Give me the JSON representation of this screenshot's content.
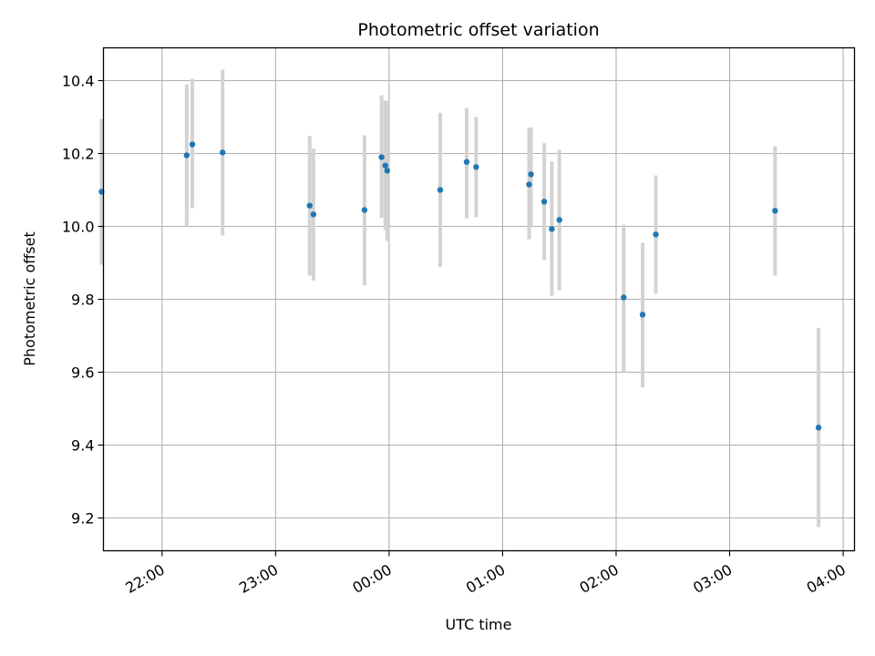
{
  "chart_data": {
    "type": "scatter",
    "title": "Photometric offset variation",
    "xlabel": "UTC time",
    "ylabel": "Photometric offset",
    "x_axis": {
      "format": "time",
      "range": [
        "21:29",
        "04:06"
      ],
      "ticks": [
        "22:00",
        "23:00",
        "00:00",
        "01:00",
        "02:00",
        "03:00",
        "04:00"
      ]
    },
    "y_axis": {
      "range": [
        9.11,
        10.49
      ],
      "ticks": [
        "9.2",
        "9.4",
        "9.6",
        "9.8",
        "10.0",
        "10.2",
        "10.4"
      ]
    },
    "grid": true,
    "colors": {
      "point": "#1f77b4",
      "errorbar": "#d3d3d3",
      "grid": "#b0b0b0"
    },
    "series": [
      {
        "points": [
          {
            "time": "21:28",
            "y": 10.095,
            "ylow": 9.895,
            "yhigh": 10.295
          },
          {
            "time": "22:13",
            "y": 10.195,
            "ylow": 10.0,
            "yhigh": 10.39
          },
          {
            "time": "22:16",
            "y": 10.225,
            "ylow": 10.05,
            "yhigh": 10.405
          },
          {
            "time": "22:32",
            "y": 10.203,
            "ylow": 9.975,
            "yhigh": 10.43
          },
          {
            "time": "23:18",
            "y": 10.057,
            "ylow": 9.865,
            "yhigh": 10.248
          },
          {
            "time": "23:20",
            "y": 10.033,
            "ylow": 9.852,
            "yhigh": 10.213
          },
          {
            "time": "23:47",
            "y": 10.045,
            "ylow": 9.838,
            "yhigh": 10.25
          },
          {
            "time": "23:56",
            "y": 10.19,
            "ylow": 10.023,
            "yhigh": 10.36
          },
          {
            "time": "23:58",
            "y": 10.167,
            "ylow": 9.99,
            "yhigh": 10.345
          },
          {
            "time": "23:59",
            "y": 10.153,
            "ylow": 9.96,
            "yhigh": 10.345
          },
          {
            "time": "00:27",
            "y": 10.1,
            "ylow": 9.888,
            "yhigh": 10.312
          },
          {
            "time": "00:41",
            "y": 10.177,
            "ylow": 10.022,
            "yhigh": 10.325
          },
          {
            "time": "00:46",
            "y": 10.163,
            "ylow": 10.025,
            "yhigh": 10.3
          },
          {
            "time": "01:14",
            "y": 10.115,
            "ylow": 9.965,
            "yhigh": 10.27
          },
          {
            "time": "01:15",
            "y": 10.143,
            "ylow": 10.0,
            "yhigh": 10.272
          },
          {
            "time": "01:22",
            "y": 10.068,
            "ylow": 9.907,
            "yhigh": 10.228
          },
          {
            "time": "01:26",
            "y": 9.993,
            "ylow": 9.81,
            "yhigh": 10.178
          },
          {
            "time": "01:30",
            "y": 10.018,
            "ylow": 9.825,
            "yhigh": 10.21
          },
          {
            "time": "02:04",
            "y": 9.805,
            "ylow": 9.6,
            "yhigh": 10.005
          },
          {
            "time": "02:14",
            "y": 9.758,
            "ylow": 9.558,
            "yhigh": 9.955
          },
          {
            "time": "02:21",
            "y": 9.978,
            "ylow": 9.815,
            "yhigh": 10.14
          },
          {
            "time": "03:24",
            "y": 10.043,
            "ylow": 9.865,
            "yhigh": 10.22
          },
          {
            "time": "03:47",
            "y": 9.448,
            "ylow": 9.175,
            "yhigh": 9.722
          }
        ]
      }
    ]
  }
}
